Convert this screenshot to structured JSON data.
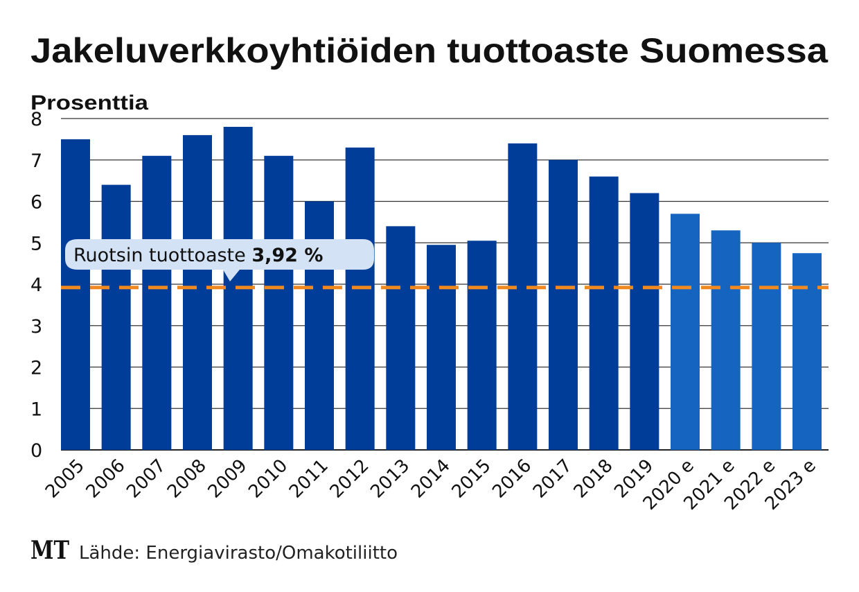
{
  "chart_data": {
    "type": "bar",
    "title": "Jakeluverkkoyhtiöiden tuottoaste Suomessa",
    "ylabel": "Prosenttia",
    "xlabel": "",
    "ylim": [
      0,
      8
    ],
    "yticks": [
      "0",
      "1",
      "2",
      "3",
      "4",
      "5",
      "6",
      "7",
      "8"
    ],
    "grid": true,
    "categories": [
      "2005",
      "2006",
      "2007",
      "2008",
      "2009",
      "2010",
      "2011",
      "2012",
      "2013",
      "2014",
      "2015",
      "2016",
      "2017",
      "2018",
      "2019",
      "2020 e",
      "2021 e",
      "2022 e",
      "2023 e"
    ],
    "values": [
      7.5,
      6.4,
      7.1,
      7.6,
      7.8,
      7.1,
      6.0,
      7.3,
      5.4,
      4.95,
      5.05,
      7.4,
      7.0,
      6.6,
      6.2,
      5.7,
      5.3,
      5.0,
      4.75
    ],
    "estimate": [
      false,
      false,
      false,
      false,
      false,
      false,
      false,
      false,
      false,
      false,
      false,
      false,
      false,
      false,
      false,
      true,
      true,
      true,
      true
    ],
    "reference_line": {
      "value": 3.92,
      "label": "Ruotsin tuottoaste",
      "value_label": "3,92 %"
    },
    "colors": {
      "actual": "#003d99",
      "estimate": "#1565c0",
      "reference": "#f0891f",
      "bubble": "#d3e2f4"
    }
  },
  "footer": {
    "logo": "MT",
    "source": "Lähde: Energiavirasto/Omakotiliitto"
  }
}
